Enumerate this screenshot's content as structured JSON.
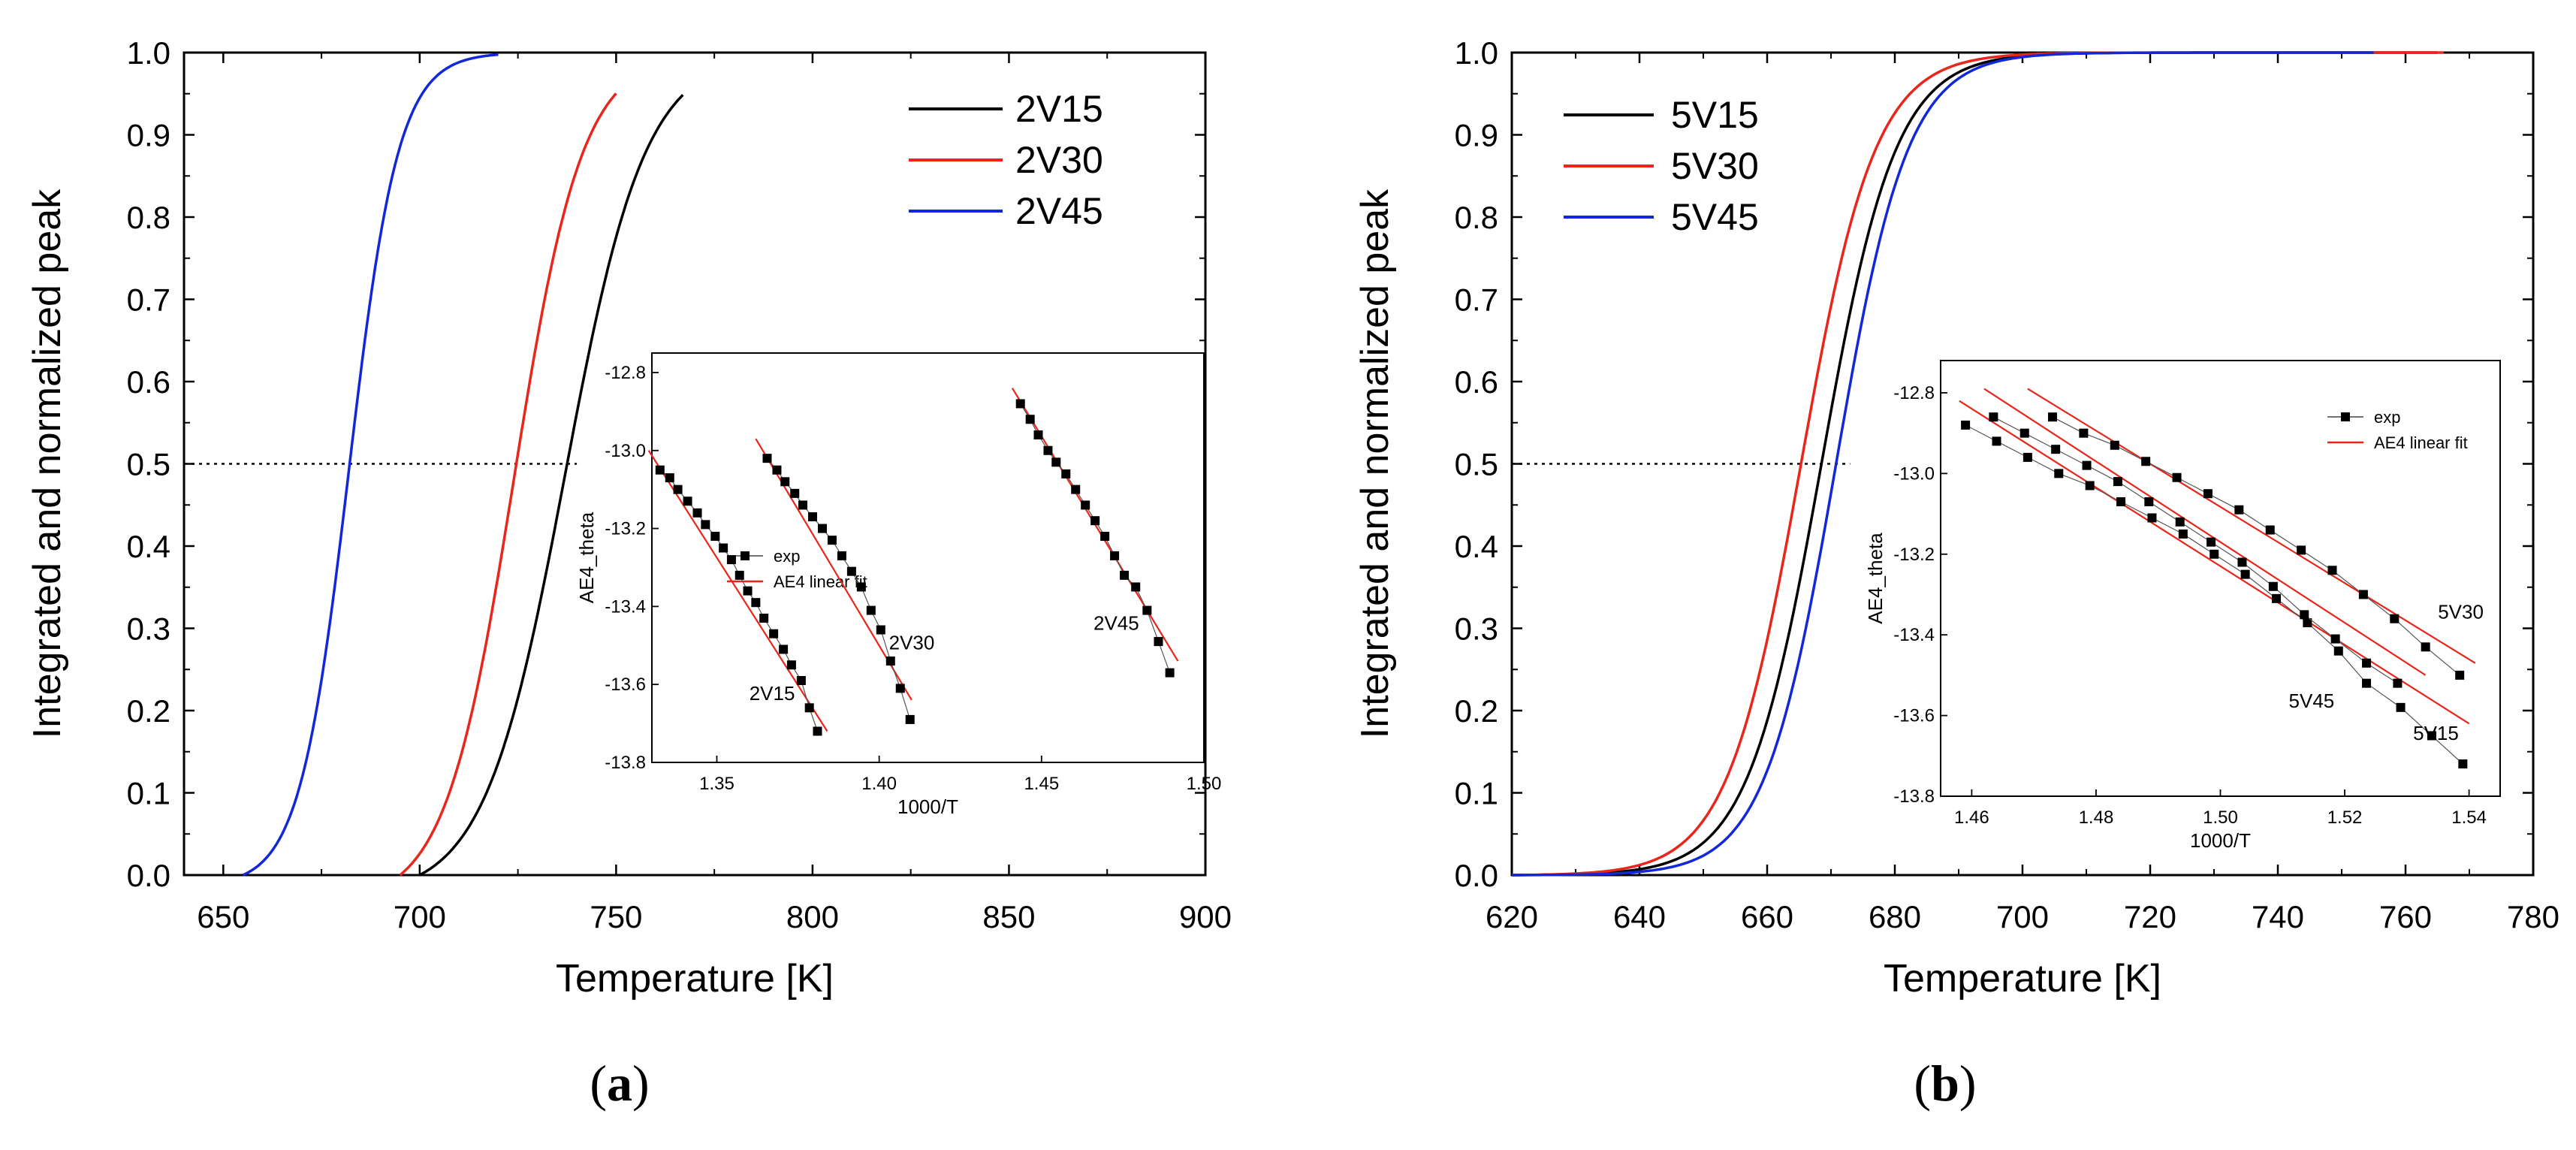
{
  "chart_data": [
    {
      "panel_label": "a",
      "type": "line",
      "xlabel": "Temperature [K]",
      "ylabel": "Integrated and normalized peak",
      "xlim": [
        640,
        900
      ],
      "ylim": [
        0,
        1.0
      ],
      "x_ticks": [
        650,
        700,
        750,
        800,
        850,
        900
      ],
      "y_ticks": [
        0.0,
        0.1,
        0.2,
        0.3,
        0.4,
        0.5,
        0.6,
        0.7,
        0.8,
        0.9,
        1.0
      ],
      "reference_line_y": 0.5,
      "reference_line_x_end": 740,
      "legend_position": "top-right",
      "series": [
        {
          "name": "2V15",
          "color": "#000000",
          "midpoint": 737,
          "width": 10.2,
          "x_start": 700,
          "x_end": 767
        },
        {
          "name": "2V30",
          "color": "#e8261c",
          "midpoint": 724,
          "width": 8.7,
          "x_start": 695,
          "x_end": 750
        },
        {
          "name": "2V45",
          "color": "#1228d8",
          "midpoint": 682,
          "width": 6.3,
          "x_start": 655,
          "x_end": 720
        }
      ],
      "inset": {
        "xlabel": "1000/T",
        "ylabel": "AE4_theta",
        "xlim": [
          1.33,
          1.5
        ],
        "ylim": [
          -13.8,
          -12.75
        ],
        "x_ticks": [
          1.35,
          1.4,
          1.45,
          1.5
        ],
        "y_ticks": [
          -12.8,
          -13.0,
          -13.2,
          -13.4,
          -13.6,
          -13.8
        ],
        "legend": [
          "exp",
          "AE4 linear fit"
        ],
        "series": [
          {
            "name": "2V15",
            "label_at": [
              1.36,
              -13.64
            ],
            "x": [
              1.3325,
              1.3355,
              1.338,
              1.341,
              1.344,
              1.3465,
              1.3495,
              1.352,
              1.3545,
              1.357,
              1.3595,
              1.362,
              1.3645,
              1.3675,
              1.3705,
              1.373,
              1.376,
              1.3785,
              1.381
            ],
            "y": [
              -13.05,
              -13.07,
              -13.1,
              -13.13,
              -13.16,
              -13.19,
              -13.22,
              -13.25,
              -13.28,
              -13.32,
              -13.36,
              -13.39,
              -13.43,
              -13.47,
              -13.51,
              -13.55,
              -13.59,
              -13.66,
              -13.72
            ],
            "fit": [
              [
                1.329,
                -13.0
              ],
              [
                1.384,
                -13.72
              ]
            ]
          },
          {
            "name": "2V30",
            "label_at": [
              1.403,
              -13.51
            ],
            "x": [
              1.3655,
              1.3685,
              1.371,
              1.374,
              1.3765,
              1.3795,
              1.3825,
              1.3855,
              1.3885,
              1.3915,
              1.3945,
              1.3975,
              1.4005,
              1.4035,
              1.4065,
              1.4095
            ],
            "y": [
              -13.02,
              -13.05,
              -13.08,
              -13.11,
              -13.14,
              -13.17,
              -13.2,
              -13.23,
              -13.27,
              -13.31,
              -13.35,
              -13.41,
              -13.46,
              -13.54,
              -13.61,
              -13.69
            ],
            "fit": [
              [
                1.362,
                -12.97
              ],
              [
                1.41,
                -13.64
              ]
            ]
          },
          {
            "name": "2V45",
            "label_at": [
              1.466,
              -13.46
            ],
            "x": [
              1.4435,
              1.4465,
              1.449,
              1.452,
              1.4545,
              1.4575,
              1.4605,
              1.4635,
              1.4665,
              1.4695,
              1.4725,
              1.4755,
              1.479,
              1.4825,
              1.486,
              1.4895
            ],
            "y": [
              -12.88,
              -12.92,
              -12.96,
              -13.0,
              -13.03,
              -13.06,
              -13.1,
              -13.14,
              -13.18,
              -13.22,
              -13.27,
              -13.32,
              -13.35,
              -13.41,
              -13.49,
              -13.57
            ],
            "fit": [
              [
                1.441,
                -12.84
              ],
              [
                1.492,
                -13.54
              ]
            ]
          }
        ]
      }
    },
    {
      "panel_label": "b",
      "type": "line",
      "xlabel": "Temperature [K]",
      "ylabel": "Integrated and normalized peak",
      "xlim": [
        620,
        780
      ],
      "ylim": [
        0,
        1.0
      ],
      "x_ticks": [
        620,
        640,
        660,
        680,
        700,
        720,
        740,
        760,
        780
      ],
      "y_ticks": [
        0.0,
        0.1,
        0.2,
        0.3,
        0.4,
        0.5,
        0.6,
        0.7,
        0.8,
        0.9,
        1.0
      ],
      "reference_line_y": 0.5,
      "reference_line_x_end": 673,
      "legend_position": "top-left",
      "series": [
        {
          "name": "5V15",
          "color": "#000000",
          "midpoint": 668.5,
          "width": 5.8,
          "x_start": 620,
          "x_end": 765
        },
        {
          "name": "5V30",
          "color": "#e8261c",
          "midpoint": 665.3,
          "width": 5.8,
          "x_start": 620,
          "x_end": 766
        },
        {
          "name": "5V45",
          "color": "#1228d8",
          "midpoint": 670.8,
          "width": 5.6,
          "x_start": 620,
          "x_end": 755
        }
      ],
      "inset": {
        "xlabel": "1000/T",
        "ylabel": "AE4_theta",
        "xlim": [
          1.455,
          1.545
        ],
        "ylim": [
          -13.8,
          -12.72
        ],
        "x_ticks": [
          1.46,
          1.48,
          1.5,
          1.52,
          1.54
        ],
        "y_ticks": [
          -12.8,
          -13.0,
          -13.2,
          -13.4,
          -13.6,
          -13.8
        ],
        "legend": [
          "exp",
          "AE4 linear fit"
        ],
        "series": [
          {
            "name": "5V15",
            "label_at": [
              1.531,
              -13.66
            ],
            "x": [
              1.459,
              1.464,
              1.469,
              1.474,
              1.479,
              1.484,
              1.489,
              1.494,
              1.499,
              1.504,
              1.509,
              1.514,
              1.519,
              1.5235,
              1.529,
              1.534,
              1.539
            ],
            "y": [
              -12.88,
              -12.92,
              -12.96,
              -13.0,
              -13.03,
              -13.07,
              -13.11,
              -13.15,
              -13.2,
              -13.25,
              -13.31,
              -13.37,
              -13.44,
              -13.52,
              -13.58,
              -13.65,
              -13.72
            ],
            "fit": [
              [
                1.458,
                -12.82
              ],
              [
                1.54,
                -13.62
              ]
            ]
          },
          {
            "name": "5V30",
            "label_at": [
              1.535,
              -13.36
            ],
            "x": [
              1.473,
              1.478,
              1.483,
              1.488,
              1.493,
              1.498,
              1.503,
              1.508,
              1.513,
              1.518,
              1.523,
              1.528,
              1.533,
              1.5385
            ],
            "y": [
              -12.86,
              -12.9,
              -12.93,
              -12.97,
              -13.01,
              -13.05,
              -13.09,
              -13.14,
              -13.19,
              -13.24,
              -13.3,
              -13.36,
              -13.43,
              -13.5
            ],
            "fit": [
              [
                1.469,
                -12.79
              ],
              [
                1.541,
                -13.47
              ]
            ]
          },
          {
            "name": "5V45",
            "label_at": [
              1.511,
              -13.58
            ],
            "x": [
              1.4635,
              1.4685,
              1.4735,
              1.4785,
              1.4835,
              1.4885,
              1.4935,
              1.4985,
              1.5035,
              1.5085,
              1.5135,
              1.5185,
              1.5235,
              1.5285
            ],
            "y": [
              -12.86,
              -12.9,
              -12.94,
              -12.98,
              -13.02,
              -13.07,
              -13.12,
              -13.17,
              -13.22,
              -13.28,
              -13.35,
              -13.41,
              -13.47,
              -13.52
            ],
            "fit": [
              [
                1.462,
                -12.79
              ],
              [
                1.533,
                -13.5
              ]
            ]
          }
        ]
      }
    }
  ]
}
